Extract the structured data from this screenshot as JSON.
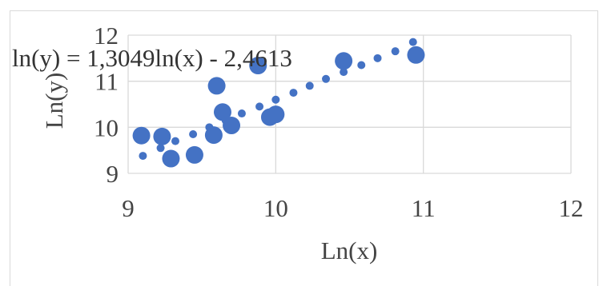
{
  "chart_data": {
    "type": "scatter",
    "title": "",
    "xlabel": "Ln(x)",
    "ylabel": "Ln(y)",
    "xlim": [
      9,
      12
    ],
    "ylim": [
      9,
      12
    ],
    "xticks": [
      "9",
      "10",
      "11",
      "12"
    ],
    "yticks": [
      "9",
      "10",
      "11",
      "12"
    ],
    "grid": true,
    "legend": "none",
    "annotation": "ln(y) = 1,3049ln(x) - 2,4613",
    "marker_color": "#4472c4",
    "series": [
      {
        "marker": "small",
        "points": [
          {
            "x": 9.1,
            "y": 9.38
          },
          {
            "x": 9.22,
            "y": 9.55
          },
          {
            "x": 9.32,
            "y": 9.7
          },
          {
            "x": 9.44,
            "y": 9.85
          },
          {
            "x": 9.55,
            "y": 10.0
          },
          {
            "x": 9.66,
            "y": 10.15
          },
          {
            "x": 9.77,
            "y": 10.3
          },
          {
            "x": 9.89,
            "y": 10.45
          },
          {
            "x": 10.0,
            "y": 10.6
          },
          {
            "x": 10.12,
            "y": 10.75
          },
          {
            "x": 10.23,
            "y": 10.9
          },
          {
            "x": 10.34,
            "y": 11.05
          },
          {
            "x": 10.46,
            "y": 11.2
          },
          {
            "x": 10.58,
            "y": 11.35
          },
          {
            "x": 10.69,
            "y": 11.5
          },
          {
            "x": 10.81,
            "y": 11.65
          },
          {
            "x": 10.93,
            "y": 11.85
          }
        ]
      },
      {
        "marker": "large",
        "points": [
          {
            "x": 9.09,
            "y": 9.82
          },
          {
            "x": 9.23,
            "y": 9.8
          },
          {
            "x": 9.29,
            "y": 9.32
          },
          {
            "x": 9.45,
            "y": 9.4
          },
          {
            "x": 9.58,
            "y": 9.83
          },
          {
            "x": 9.6,
            "y": 10.9
          },
          {
            "x": 9.64,
            "y": 10.33
          },
          {
            "x": 9.7,
            "y": 10.04
          },
          {
            "x": 9.88,
            "y": 11.34
          },
          {
            "x": 9.96,
            "y": 10.22
          },
          {
            "x": 10.0,
            "y": 10.28
          },
          {
            "x": 10.46,
            "y": 11.44
          },
          {
            "x": 10.95,
            "y": 11.57
          }
        ]
      }
    ]
  }
}
